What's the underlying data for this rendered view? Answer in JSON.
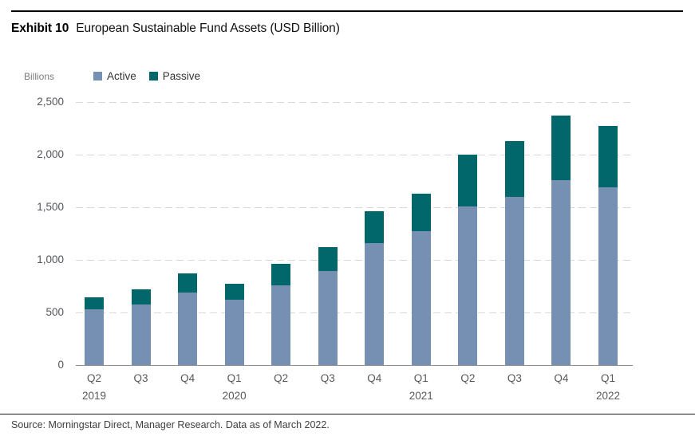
{
  "header": {
    "exhibit_label": "Exhibit 10",
    "title": "European Sustainable Fund Assets (USD Billion)"
  },
  "axis_unit_label": "Billions",
  "chart_data": {
    "type": "bar",
    "stacked": true,
    "title": "European Sustainable Fund Assets (USD Billion)",
    "ylabel": "Billions",
    "ylim": [
      0,
      2500
    ],
    "ytick_interval": 500,
    "ytick_labels": [
      "0",
      "500",
      "1,000",
      "1,500",
      "2,000",
      "2,500"
    ],
    "grid": "horizontal-dashed",
    "legend_position": "top-left",
    "categories": [
      "Q2 2019",
      "Q3 2019",
      "Q4 2019",
      "Q1 2020",
      "Q2 2020",
      "Q3 2020",
      "Q4 2020",
      "Q1 2021",
      "Q2 2021",
      "Q3 2021",
      "Q4 2021",
      "Q1 2022"
    ],
    "x_tick_quarters": [
      "Q2",
      "Q3",
      "Q4",
      "Q1",
      "Q2",
      "Q3",
      "Q4",
      "Q1",
      "Q2",
      "Q3",
      "Q4",
      "Q1"
    ],
    "x_tick_years": [
      "2019",
      "",
      "",
      "2020",
      "",
      "",
      "",
      "2021",
      "",
      "",
      "",
      "2022"
    ],
    "series": [
      {
        "name": "Active",
        "color": "#7590B2",
        "values": [
          530,
          575,
          690,
          620,
          760,
          895,
          1160,
          1270,
          1510,
          1600,
          1760,
          1690
        ]
      },
      {
        "name": "Passive",
        "color": "#02676B",
        "values": [
          115,
          145,
          180,
          155,
          200,
          230,
          305,
          360,
          490,
          530,
          610,
          585
        ]
      }
    ],
    "totals": [
      645,
      720,
      870,
      775,
      960,
      1125,
      1465,
      1630,
      2000,
      2130,
      2370,
      2275
    ]
  },
  "footer": {
    "source": "Source: Morningstar Direct, Manager Research. Data as of March 2022."
  }
}
